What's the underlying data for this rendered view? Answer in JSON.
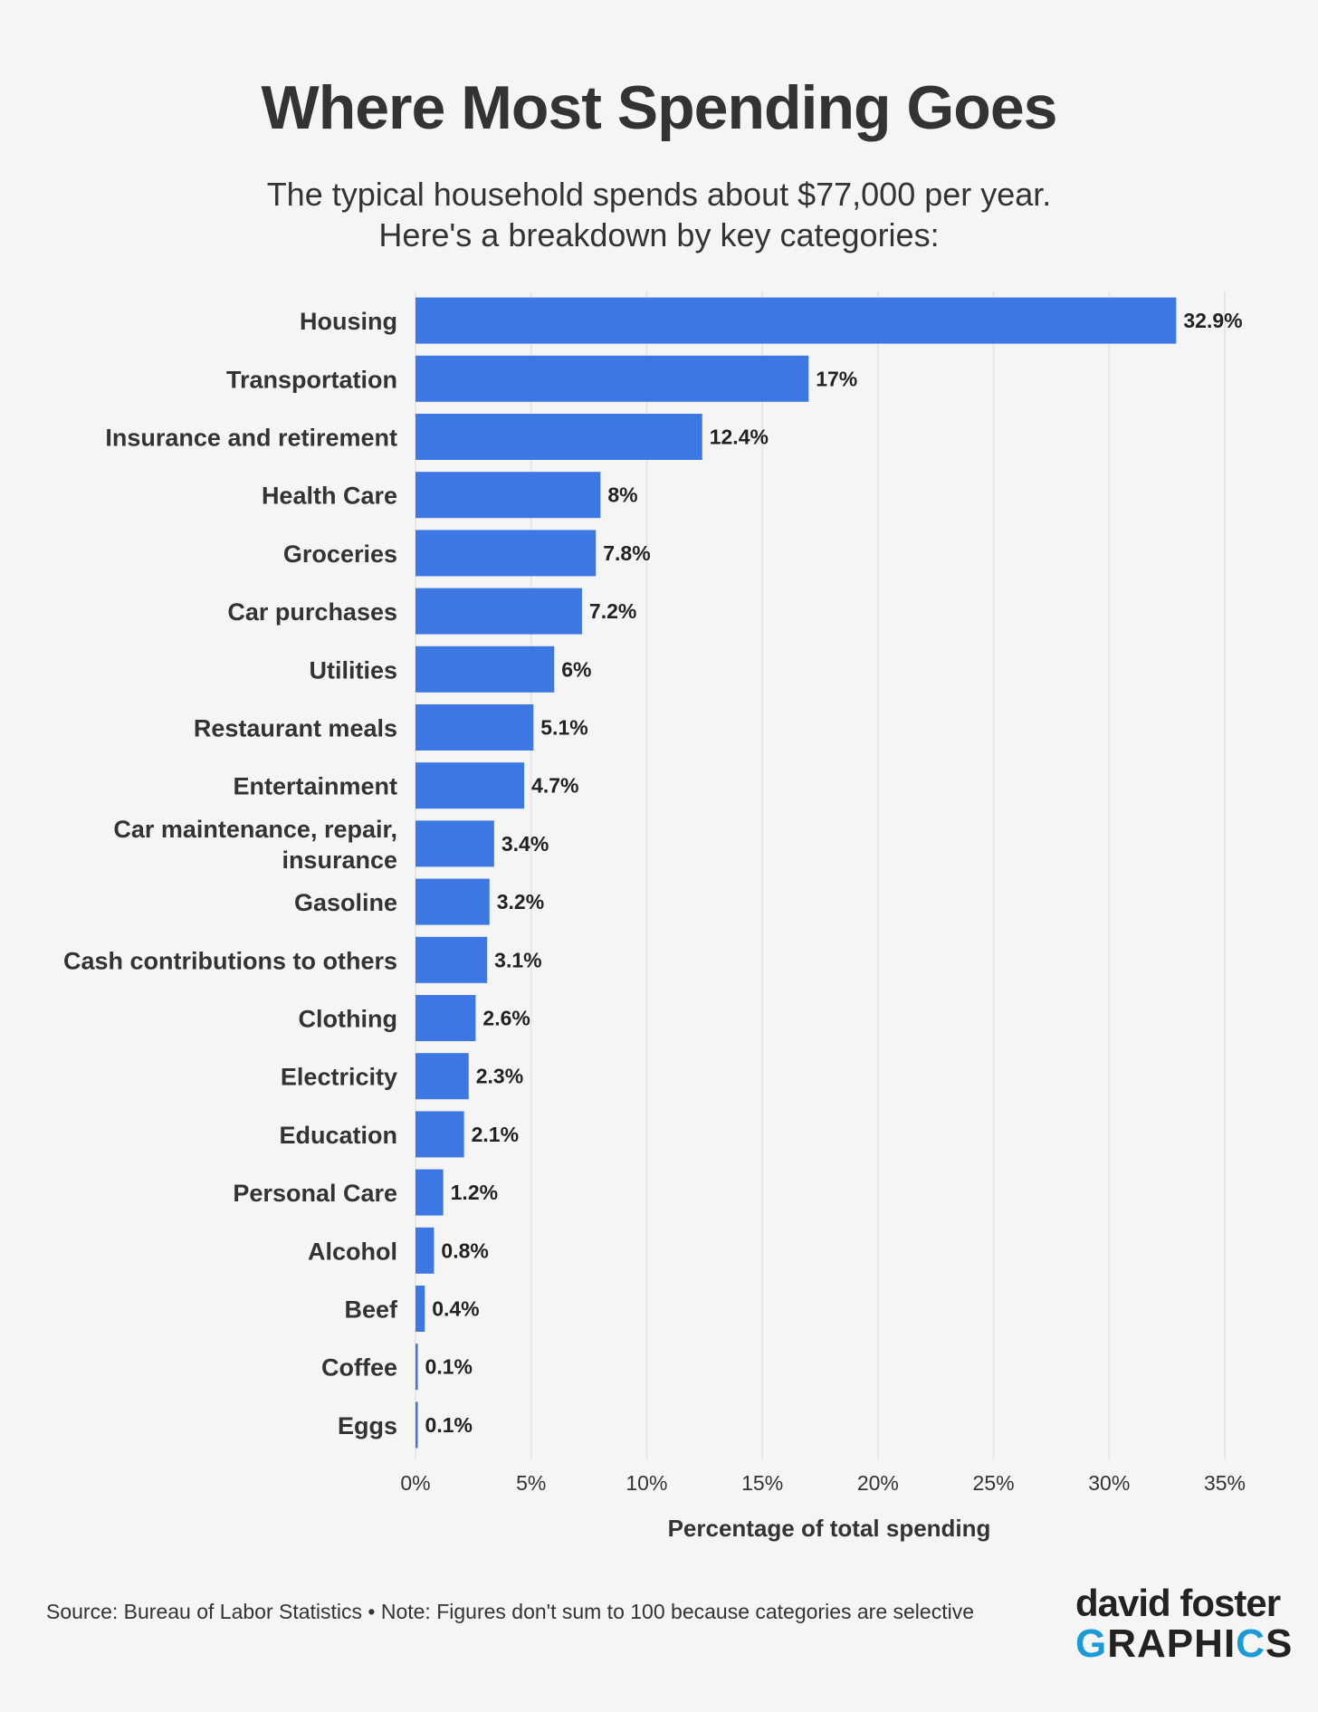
{
  "title": "Where Most Spending Goes",
  "subtitle_line1": "The typical household spends about $77,000 per year.",
  "subtitle_line2": "Here's a breakdown by key categories:",
  "footer": {
    "source": "Source: Bureau of Labor Statistics • Note: Figures don't sum to 100 because categories are selective"
  },
  "brand": {
    "line1": "david foster",
    "line2": "GRAPHICS",
    "accent_color": "#1a9ad6"
  },
  "colors": {
    "bar": "#3d77e3",
    "grid": "#e6e6e6",
    "background": "#f5f5f5"
  },
  "chart_data": {
    "type": "bar",
    "orientation": "horizontal",
    "title": "Where Most Spending Goes",
    "xlabel": "Percentage of total spending",
    "ylabel": "",
    "xlim": [
      0,
      35
    ],
    "grid": true,
    "ticks": [
      0,
      5,
      10,
      15,
      20,
      25,
      30,
      35
    ],
    "tick_labels": [
      "0%",
      "5%",
      "10%",
      "15%",
      "20%",
      "25%",
      "30%",
      "35%"
    ],
    "categories": [
      "Housing",
      "Transportation",
      "Insurance and retirement",
      "Health Care",
      "Groceries",
      "Car purchases",
      "Utilities",
      "Restaurant meals",
      "Entertainment",
      "Car maintenance, repair, insurance",
      "Gasoline",
      "Cash contributions to others",
      "Clothing",
      "Electricity",
      "Education",
      "Personal Care",
      "Alcohol",
      "Beef",
      "Coffee",
      "Eggs"
    ],
    "values": [
      32.9,
      17,
      12.4,
      8,
      7.8,
      7.2,
      6,
      5.1,
      4.7,
      3.4,
      3.2,
      3.1,
      2.6,
      2.3,
      2.1,
      1.2,
      0.8,
      0.4,
      0.1,
      0.1
    ],
    "value_labels": [
      "32.9%",
      "17%",
      "12.4%",
      "8%",
      "7.8%",
      "7.2%",
      "6%",
      "5.1%",
      "4.7%",
      "3.4%",
      "3.2%",
      "3.1%",
      "2.6%",
      "2.3%",
      "2.1%",
      "1.2%",
      "0.8%",
      "0.4%",
      "0.1%",
      "0.1%"
    ]
  }
}
